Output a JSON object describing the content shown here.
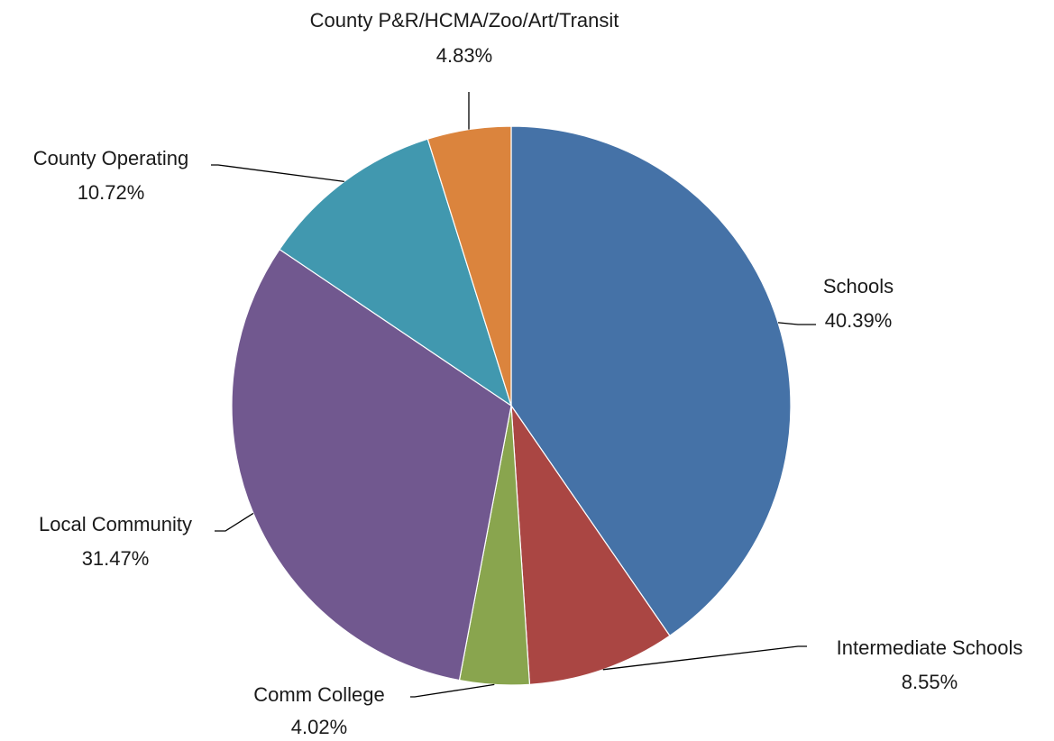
{
  "chart_data": {
    "type": "pie",
    "start_angle_deg": 0,
    "direction": "clockwise",
    "legend": "none",
    "slices": [
      {
        "label": "Schools",
        "value": 40.39,
        "value_label": "40.39%",
        "color": "#4572A7"
      },
      {
        "label": "Intermediate Schools",
        "value": 8.55,
        "value_label": "8.55%",
        "color": "#AA4643"
      },
      {
        "label": "Comm College",
        "value": 4.02,
        "value_label": "4.02%",
        "color": "#89A54E"
      },
      {
        "label": "Local Community",
        "value": 31.47,
        "value_label": "31.47%",
        "color": "#71588F"
      },
      {
        "label": "County Operating",
        "value": 10.72,
        "value_label": "10.72%",
        "color": "#4198AF"
      },
      {
        "label": "County P&R/HCMA/Zoo/Art/Transit",
        "value": 4.83,
        "value_label": "4.83%",
        "color": "#DB843D"
      }
    ]
  }
}
